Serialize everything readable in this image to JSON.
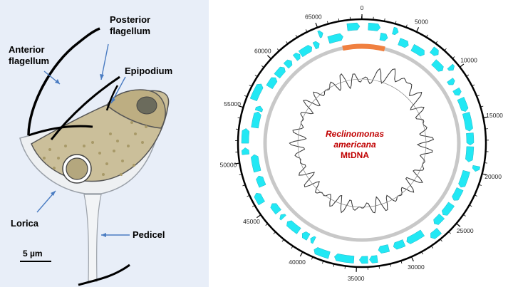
{
  "cell_diagram": {
    "labels": {
      "posterior": [
        "Posterior",
        "flagellum"
      ],
      "anterior": [
        "Anterior",
        "flagellum"
      ],
      "epipodium": "Epipodium",
      "lorica": "Lorica",
      "pedicel": "Pedicel",
      "scale_bar": "5 µm"
    }
  },
  "genome_map": {
    "title_lines": [
      "Reclinomonas",
      "americana",
      "MtDNA"
    ],
    "ticks": [
      "0",
      "5000",
      "10000",
      "15000",
      "20000",
      "25000",
      "30000",
      "35000",
      "40000",
      "45000",
      "50000",
      "55000",
      "60000",
      "65000"
    ],
    "genome_length": 69034,
    "colors": {
      "gene": "#22e8f4",
      "orange_region": "#f08040",
      "ring": "#c8c8c8",
      "title": "#c00000",
      "gc_plot": "#333333"
    }
  }
}
